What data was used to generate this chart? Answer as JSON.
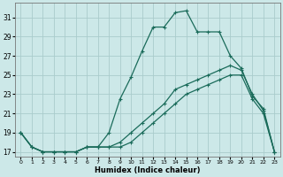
{
  "xlabel": "Humidex (Indice chaleur)",
  "bg_color": "#cce8e8",
  "grid_color": "#aacccc",
  "line_color": "#1a6b5a",
  "xlim": [
    -0.5,
    23.5
  ],
  "ylim": [
    16.5,
    32.5
  ],
  "yticks": [
    17,
    19,
    21,
    23,
    25,
    27,
    29,
    31
  ],
  "xticks": [
    0,
    1,
    2,
    3,
    4,
    5,
    6,
    7,
    8,
    9,
    10,
    11,
    12,
    13,
    14,
    15,
    16,
    17,
    18,
    19,
    20,
    21,
    22,
    23
  ],
  "line1_x": [
    0,
    1,
    2,
    3,
    4,
    5,
    6,
    7,
    8,
    9,
    10,
    11,
    12,
    13,
    14,
    15,
    16,
    17,
    18,
    19,
    20,
    21,
    22,
    23
  ],
  "line1_y": [
    19,
    17.5,
    17,
    17,
    17,
    17,
    17.5,
    17.5,
    19,
    22.5,
    24.8,
    27.5,
    30.0,
    30.0,
    31.5,
    31.7,
    29.5,
    29.5,
    29.5,
    27.0,
    25.7,
    22.8,
    21.5,
    17.0
  ],
  "line2_x": [
    0,
    1,
    2,
    3,
    4,
    5,
    6,
    7,
    8,
    9,
    10,
    11,
    12,
    13,
    14,
    15,
    16,
    17,
    18,
    19,
    20,
    21,
    22,
    23
  ],
  "line2_y": [
    19,
    17.5,
    17,
    17,
    17,
    17,
    17.5,
    17.5,
    17.5,
    18.0,
    19.0,
    20.0,
    21.0,
    22.0,
    23.5,
    24.0,
    24.5,
    25.0,
    25.5,
    26.0,
    25.5,
    23.0,
    21.3,
    17.0
  ],
  "line3_x": [
    0,
    1,
    2,
    3,
    4,
    5,
    6,
    7,
    8,
    9,
    10,
    11,
    12,
    13,
    14,
    15,
    16,
    17,
    18,
    19,
    20,
    21,
    22,
    23
  ],
  "line3_y": [
    19,
    17.5,
    17,
    17,
    17,
    17,
    17.5,
    17.5,
    17.5,
    17.5,
    18.0,
    19.0,
    20.0,
    21.0,
    22.0,
    23.0,
    23.5,
    24.0,
    24.5,
    25.0,
    25.0,
    22.5,
    21.0,
    17.0
  ]
}
